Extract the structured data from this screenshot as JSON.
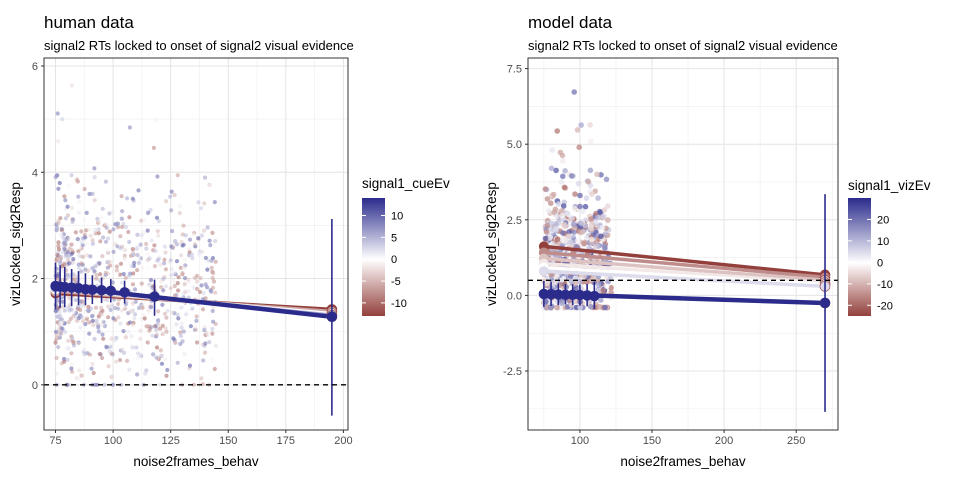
{
  "chart_data": [
    {
      "type": "scatter",
      "title": "human data",
      "subtitle": "signal2 RTs locked to onset of signal2 visual evidence",
      "xlabel": "noise2frames_behav",
      "ylabel": "vizLocked_sig2Resp",
      "xlim": [
        70,
        202
      ],
      "ylim": [
        -0.85,
        6.15
      ],
      "xticks": [
        75,
        100,
        125,
        150,
        175,
        200
      ],
      "yticks": [
        0,
        2,
        4,
        6
      ],
      "hline": 0,
      "grid": true,
      "legend": {
        "title": "signal1_cueEv",
        "position": "right",
        "range": [
          -13,
          14
        ],
        "ticks": [
          -10,
          -5,
          0,
          5,
          10
        ],
        "low_color": "#93403c",
        "mid_color": "#ffffff",
        "high_color": "#2b2b8c"
      },
      "points": {
        "x_range": [
          75,
          145
        ],
        "y_range": [
          0.0,
          5.8
        ],
        "count": 900
      },
      "series": [
        {
          "color_value": -13,
          "x": [
            75,
            195
          ],
          "y": [
            1.72,
            1.42
          ]
        },
        {
          "color_value": -6,
          "x": [
            75,
            195
          ],
          "y": [
            1.76,
            1.38
          ]
        },
        {
          "color_value": 0,
          "x": [
            75,
            195
          ],
          "y": [
            1.8,
            1.34
          ]
        },
        {
          "color_value": 6,
          "x": [
            75,
            195
          ],
          "y": [
            1.83,
            1.31
          ]
        },
        {
          "color_value": 14,
          "x": [
            75,
            195
          ],
          "y": [
            1.86,
            1.28
          ]
        }
      ],
      "error_bars": {
        "color_value": 14,
        "x": [
          75,
          77,
          79,
          82,
          85,
          88,
          91,
          95,
          99,
          105,
          118,
          195
        ],
        "y": [
          1.86,
          1.85,
          1.84,
          1.83,
          1.82,
          1.8,
          1.79,
          1.78,
          1.77,
          1.74,
          1.66,
          1.28
        ],
        "low": [
          1.42,
          1.45,
          1.46,
          1.48,
          1.5,
          1.5,
          1.52,
          1.54,
          1.55,
          1.53,
          1.3,
          -0.58
        ],
        "high": [
          2.3,
          2.25,
          2.22,
          2.18,
          2.14,
          2.1,
          2.06,
          2.02,
          1.99,
          1.96,
          1.98,
          3.12
        ]
      }
    },
    {
      "type": "scatter",
      "title": "model data",
      "subtitle": "signal2 RTs locked to onset of signal2 visual evidence",
      "xlabel": "noise2frames_behav",
      "ylabel": "vizLocked_sig2Resp",
      "xlim": [
        64,
        279
      ],
      "ylim": [
        -4.45,
        7.85
      ],
      "xticks": [
        100,
        150,
        200,
        250
      ],
      "yticks": [
        -2.5,
        0.0,
        2.5,
        5.0,
        7.5
      ],
      "hline": 0.5,
      "grid": true,
      "legend": {
        "title": "signal1_vizEv",
        "position": "right",
        "range": [
          -25,
          30
        ],
        "ticks": [
          -20,
          -10,
          0,
          10,
          20
        ],
        "low_color": "#93403c",
        "mid_color": "#ffffff",
        "high_color": "#2b2b8c"
      },
      "points": {
        "x_range": [
          75,
          122
        ],
        "y_range": [
          -0.4,
          7.6
        ],
        "count": 700
      },
      "series": [
        {
          "color_value": -25,
          "x": [
            75,
            270
          ],
          "y": [
            1.62,
            0.68
          ]
        },
        {
          "color_value": -15,
          "x": [
            75,
            270
          ],
          "y": [
            1.42,
            0.6
          ]
        },
        {
          "color_value": -8,
          "x": [
            75,
            270
          ],
          "y": [
            1.22,
            0.5
          ]
        },
        {
          "color_value": -3,
          "x": [
            75,
            270
          ],
          "y": [
            1.05,
            0.42
          ]
        },
        {
          "color_value": 0,
          "x": [
            75,
            270
          ],
          "y": [
            0.92,
            0.36
          ]
        },
        {
          "color_value": 5,
          "x": [
            75,
            270
          ],
          "y": [
            0.8,
            0.3
          ]
        },
        {
          "color_value": 30,
          "x": [
            75,
            270
          ],
          "y": [
            0.05,
            -0.25
          ]
        }
      ],
      "error_bars": {
        "color_value": 30,
        "x": [
          75,
          80,
          85,
          90,
          95,
          100,
          105,
          110,
          270
        ],
        "y": [
          0.05,
          0.04,
          0.03,
          0.02,
          0.02,
          0.01,
          0.0,
          -0.02,
          -0.25
        ],
        "low": [
          -0.38,
          -0.35,
          -0.32,
          -0.3,
          -0.32,
          -0.34,
          -0.36,
          -0.45,
          -3.85
        ],
        "high": [
          0.48,
          0.44,
          0.4,
          0.38,
          0.37,
          0.36,
          0.38,
          0.45,
          3.35
        ]
      }
    }
  ]
}
